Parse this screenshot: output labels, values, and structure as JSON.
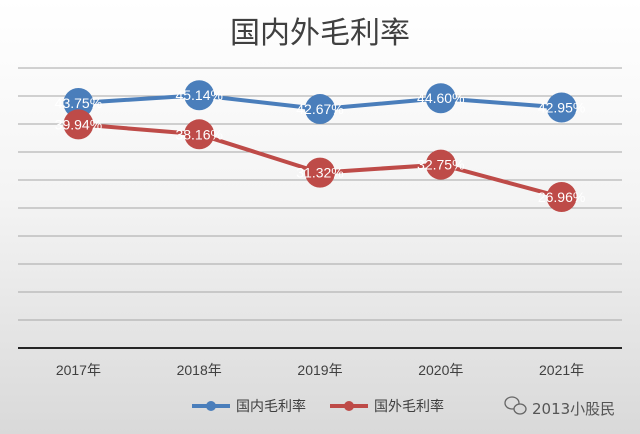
{
  "chart_data": {
    "type": "line",
    "title": "国内外毛利率",
    "categories": [
      "2017年",
      "2018年",
      "2019年",
      "2020年",
      "2021年"
    ],
    "series": [
      {
        "name": "国内毛利率",
        "values": [
          43.75,
          45.14,
          42.67,
          44.6,
          42.95
        ],
        "labels": [
          "43.75%",
          "45.14%",
          "42.67%",
          "44.60%",
          "42.95%"
        ],
        "color": "#4a7ebb"
      },
      {
        "name": "国外毛利率",
        "values": [
          39.94,
          38.16,
          31.32,
          32.75,
          26.96
        ],
        "labels": [
          "39.94%",
          "38.16%",
          "31.32%",
          "32.75%",
          "26.96%"
        ],
        "color": "#be4b48"
      }
    ],
    "ylim": [
      0,
      50
    ],
    "grid": true,
    "legend_position": "bottom"
  },
  "watermark": {
    "text": "2013小股民",
    "icon": "wechat-icon"
  }
}
